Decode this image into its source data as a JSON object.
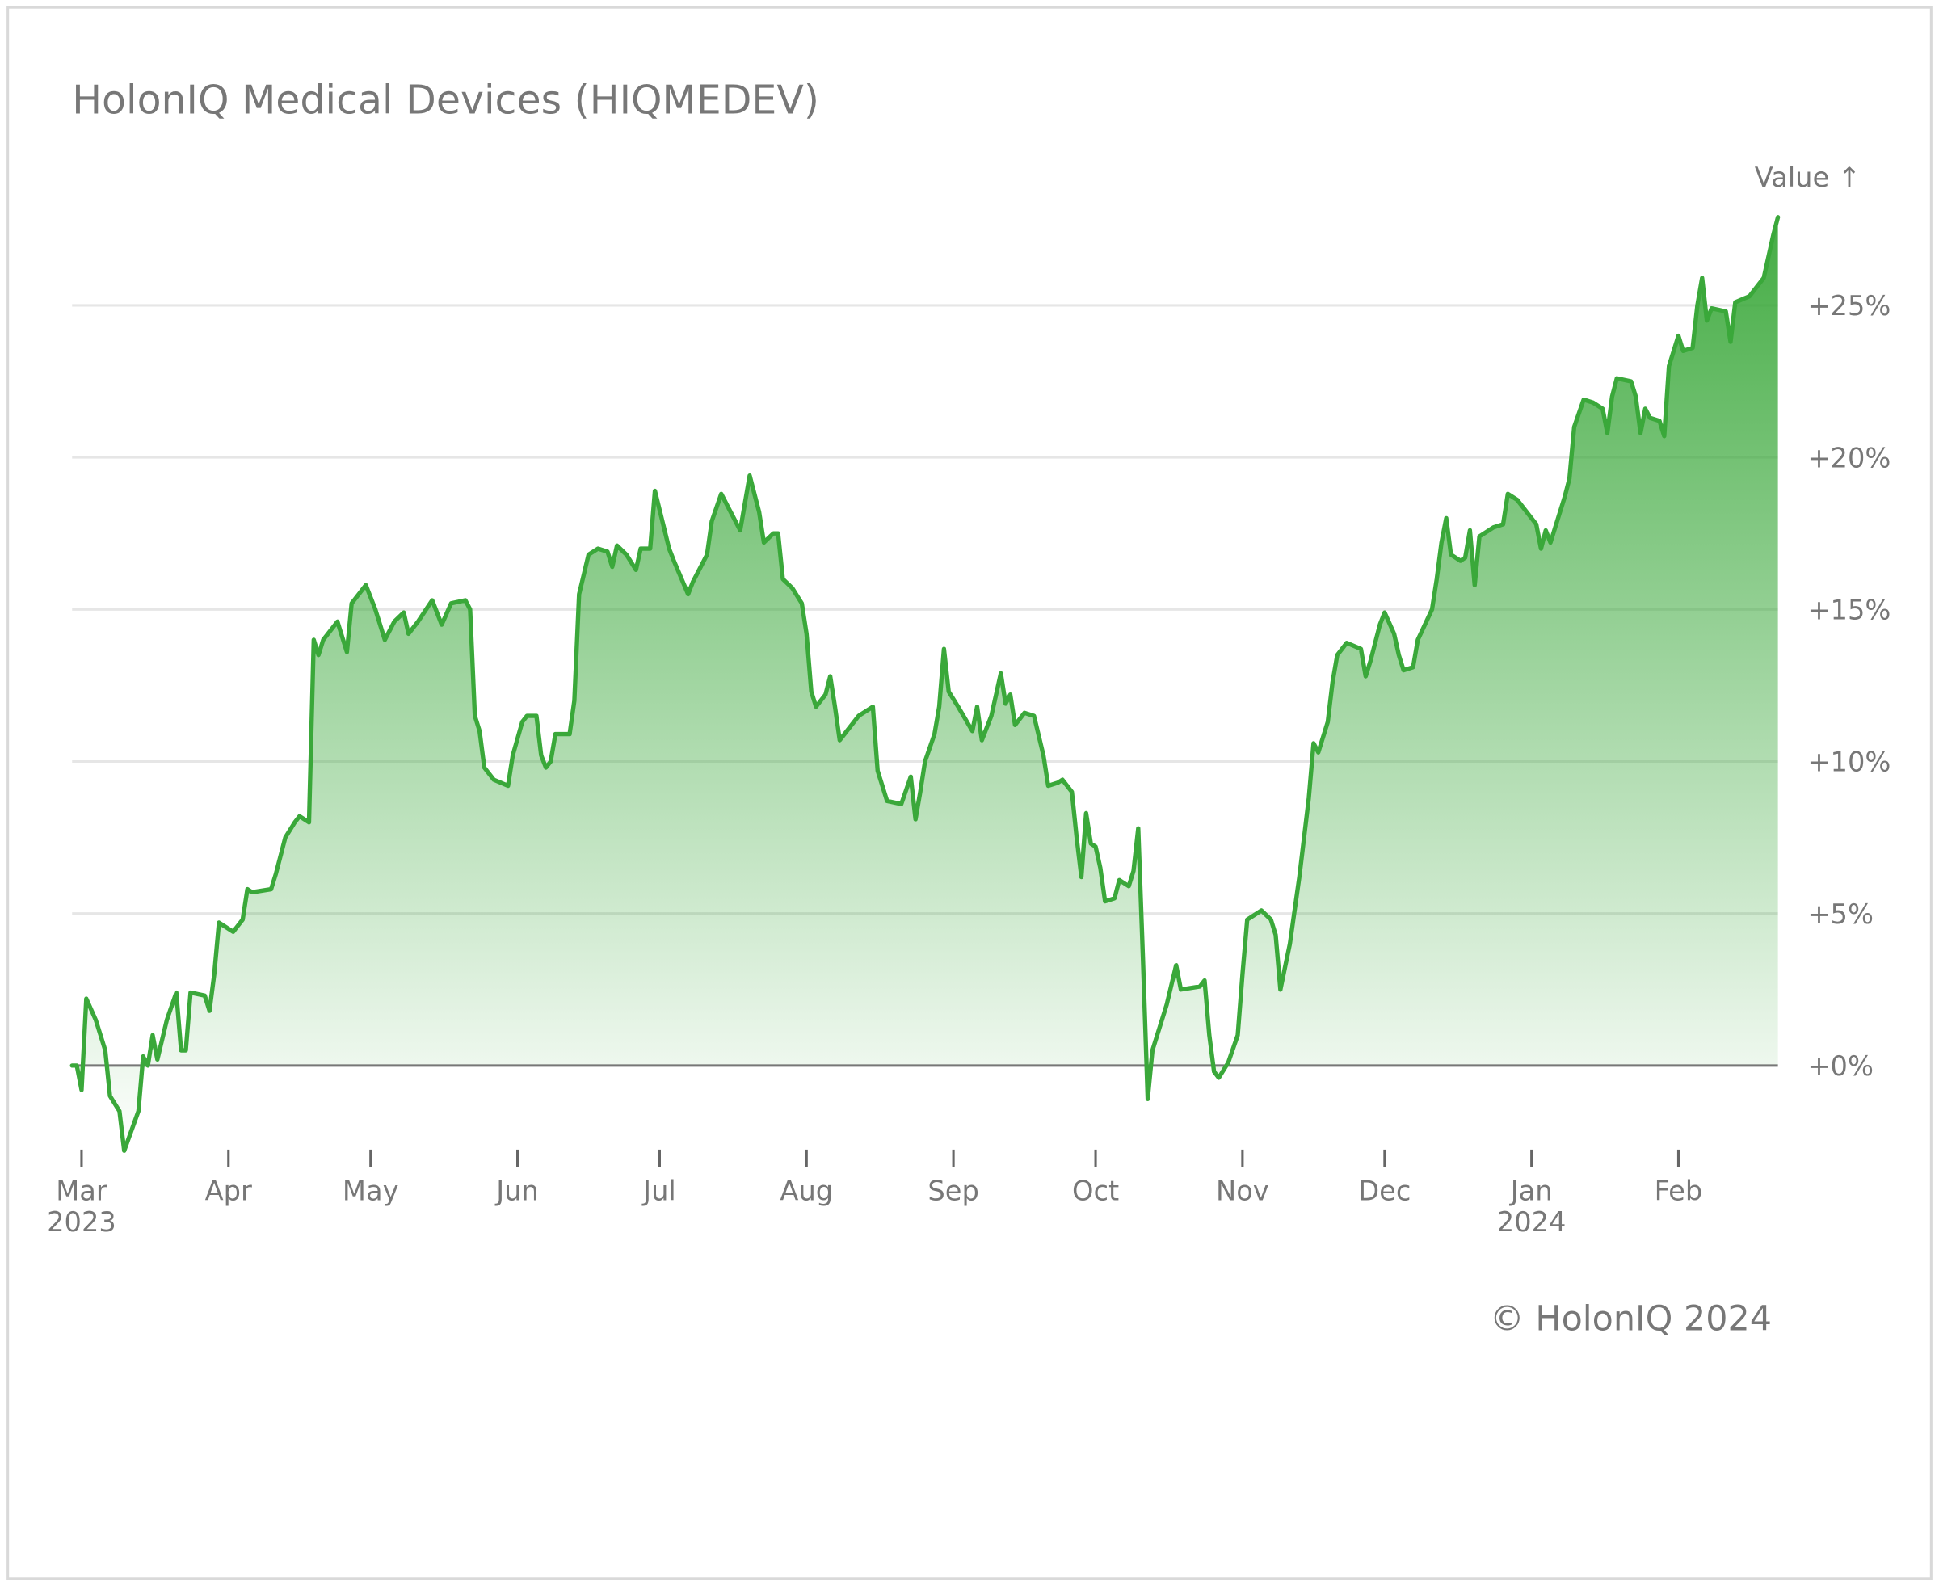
{
  "chart_data": {
    "type": "line",
    "title": "HolonIQ Medical Devices (HIQMEDEV)",
    "y_label": "Value ↑",
    "source": "© HolonIQ 2024",
    "color": "#3aa83a",
    "grid": true,
    "xlim": [
      "2023-02-27",
      "2024-02-22"
    ],
    "xticks": [
      {
        "value": "2023-03-01",
        "label": "Mar 2023"
      },
      {
        "value": "2023-04-01",
        "label": "Apr"
      },
      {
        "value": "2023-05-01",
        "label": "May"
      },
      {
        "value": "2023-06-01",
        "label": "Jun"
      },
      {
        "value": "2023-07-01",
        "label": "Jul"
      },
      {
        "value": "2023-08-01",
        "label": "Aug"
      },
      {
        "value": "2023-09-01",
        "label": "Sep"
      },
      {
        "value": "2023-10-01",
        "label": "Oct"
      },
      {
        "value": "2023-11-01",
        "label": "Nov"
      },
      {
        "value": "2023-12-01",
        "label": "Dec"
      },
      {
        "value": "2024-01-01",
        "label": "Jan 2024"
      },
      {
        "value": "2024-02-01",
        "label": "Feb"
      }
    ],
    "ylim": [
      -3,
      28
    ],
    "yticks": [
      {
        "value": 0,
        "label": "+0%"
      },
      {
        "value": 5,
        "label": "+5%"
      },
      {
        "value": 10,
        "label": "+10%"
      },
      {
        "value": 15,
        "label": "+15%"
      },
      {
        "value": 20,
        "label": "+20%"
      },
      {
        "value": 25,
        "label": "+25%"
      }
    ],
    "x": [
      "2023-02-27",
      "2023-02-28",
      "2023-03-01",
      "2023-03-02",
      "2023-03-04",
      "2023-03-06",
      "2023-03-07",
      "2023-03-09",
      "2023-03-10",
      "2023-03-13",
      "2023-03-14",
      "2023-03-15",
      "2023-03-16",
      "2023-03-17",
      "2023-03-19",
      "2023-03-21",
      "2023-03-22",
      "2023-03-23",
      "2023-03-24",
      "2023-03-27",
      "2023-03-28",
      "2023-03-29",
      "2023-03-30",
      "2023-04-02",
      "2023-04-04",
      "2023-04-05",
      "2023-04-06",
      "2023-04-10",
      "2023-04-11",
      "2023-04-13",
      "2023-04-15",
      "2023-04-16",
      "2023-04-18",
      "2023-04-19",
      "2023-04-20",
      "2023-04-21",
      "2023-04-24",
      "2023-04-26",
      "2023-04-27",
      "2023-04-30",
      "2023-05-02",
      "2023-05-04",
      "2023-05-06",
      "2023-05-08",
      "2023-05-09",
      "2023-05-11",
      "2023-05-14",
      "2023-05-16",
      "2023-05-18",
      "2023-05-21",
      "2023-05-22",
      "2023-05-23",
      "2023-05-24",
      "2023-05-25",
      "2023-05-27",
      "2023-05-30",
      "2023-05-31",
      "2023-06-02",
      "2023-06-03",
      "2023-06-05",
      "2023-06-06",
      "2023-06-07",
      "2023-06-08",
      "2023-06-09",
      "2023-06-12",
      "2023-06-13",
      "2023-06-14",
      "2023-06-16",
      "2023-06-18",
      "2023-06-20",
      "2023-06-21",
      "2023-06-22",
      "2023-06-24",
      "2023-06-26",
      "2023-06-27",
      "2023-06-29",
      "2023-06-30",
      "2023-07-03",
      "2023-07-04",
      "2023-07-07",
      "2023-07-08",
      "2023-07-11",
      "2023-07-12",
      "2023-07-14",
      "2023-07-16",
      "2023-07-18",
      "2023-07-20",
      "2023-07-22",
      "2023-07-23",
      "2023-07-25",
      "2023-07-26",
      "2023-07-27",
      "2023-07-29",
      "2023-07-31",
      "2023-08-01",
      "2023-08-02",
      "2023-08-03",
      "2023-08-05",
      "2023-08-06",
      "2023-08-07",
      "2023-08-08",
      "2023-08-10",
      "2023-08-12",
      "2023-08-15",
      "2023-08-16",
      "2023-08-18",
      "2023-08-21",
      "2023-08-23",
      "2023-08-24",
      "2023-08-25",
      "2023-08-26",
      "2023-08-28",
      "2023-08-29",
      "2023-08-30",
      "2023-08-31",
      "2023-09-02",
      "2023-09-05",
      "2023-09-06",
      "2023-09-07",
      "2023-09-09",
      "2023-09-11",
      "2023-09-12",
      "2023-09-13",
      "2023-09-14",
      "2023-09-16",
      "2023-09-18",
      "2023-09-20",
      "2023-09-21",
      "2023-09-23",
      "2023-09-24",
      "2023-09-26",
      "2023-09-27",
      "2023-09-28",
      "2023-09-29",
      "2023-09-30",
      "2023-10-01",
      "2023-10-02",
      "2023-10-03",
      "2023-10-05",
      "2023-10-06",
      "2023-10-08",
      "2023-10-09",
      "2023-10-10",
      "2023-10-11",
      "2023-10-12",
      "2023-10-13",
      "2023-10-16",
      "2023-10-18",
      "2023-10-19",
      "2023-10-23",
      "2023-10-24",
      "2023-10-25",
      "2023-10-26",
      "2023-10-27",
      "2023-10-29",
      "2023-10-31",
      "2023-11-01",
      "2023-11-02",
      "2023-11-05",
      "2023-11-07",
      "2023-11-08",
      "2023-11-09",
      "2023-11-11",
      "2023-11-13",
      "2023-11-15",
      "2023-11-16",
      "2023-11-17",
      "2023-11-19",
      "2023-11-20",
      "2023-11-21",
      "2023-11-23",
      "2023-11-26",
      "2023-11-27",
      "2023-11-28",
      "2023-11-30",
      "2023-12-01",
      "2023-12-03",
      "2023-12-04",
      "2023-12-05",
      "2023-12-07",
      "2023-12-08",
      "2023-12-11",
      "2023-12-12",
      "2023-12-13",
      "2023-12-14",
      "2023-12-15",
      "2023-12-17",
      "2023-12-18",
      "2023-12-19",
      "2023-12-20",
      "2023-12-21",
      "2023-12-24",
      "2023-12-26",
      "2023-12-27",
      "2023-12-29",
      "2024-01-02",
      "2024-01-03",
      "2024-01-04",
      "2024-01-05",
      "2024-01-08",
      "2024-01-09",
      "2024-01-10",
      "2024-01-12",
      "2024-01-14",
      "2024-01-16",
      "2024-01-17",
      "2024-01-18",
      "2024-01-19",
      "2024-01-22",
      "2024-01-23",
      "2024-01-24",
      "2024-01-25",
      "2024-01-26",
      "2024-01-28",
      "2024-01-29",
      "2024-01-30",
      "2024-02-01",
      "2024-02-02",
      "2024-02-04",
      "2024-02-05",
      "2024-02-06",
      "2024-02-07",
      "2024-02-08",
      "2024-02-11",
      "2024-02-12",
      "2024-02-13",
      "2024-02-16",
      "2024-02-19",
      "2024-02-21",
      "2024-02-22"
    ],
    "values": [
      0,
      0,
      -0.8,
      2.2,
      1.5,
      0.5,
      -1,
      -1.5,
      -2.8,
      -1.5,
      0.3,
      0,
      1,
      0.2,
      1.5,
      2.4,
      0.5,
      0.5,
      2.4,
      2.3,
      1.8,
      3,
      4.7,
      4.4,
      4.8,
      5.8,
      5.7,
      5.8,
      6.3,
      7.5,
      8.0,
      8.2,
      8.0,
      14.0,
      13.5,
      14.0,
      14.6,
      13.6,
      15.2,
      15.8,
      15.0,
      14.0,
      14.6,
      14.9,
      14.2,
      14.6,
      15.3,
      14.5,
      15.2,
      15.3,
      15.0,
      11.5,
      11.0,
      9.8,
      9.4,
      9.2,
      10.2,
      11.3,
      11.5,
      11.5,
      10.2,
      9.8,
      10.0,
      10.9,
      10.9,
      12.0,
      15.5,
      16.8,
      17.0,
      16.9,
      16.4,
      17.1,
      16.8,
      16.3,
      17.0,
      17.0,
      18.9,
      17.0,
      16.6,
      15.5,
      15.9,
      16.8,
      17.9,
      18.8,
      18.2,
      17.6,
      19.4,
      18.2,
      17.2,
      17.5,
      17.5,
      16.0,
      15.7,
      15.2,
      14.2,
      12.3,
      11.8,
      12.2,
      12.8,
      11.8,
      10.7,
      11.1,
      11.5,
      11.8,
      9.7,
      8.7,
      8.6,
      9.5,
      8.1,
      9.0,
      10.0,
      10.9,
      11.8,
      13.7,
      12.3,
      11.8,
      11.0,
      11.8,
      10.7,
      11.5,
      12.9,
      11.9,
      12.2,
      11.2,
      11.6,
      11.5,
      10.2,
      9.2,
      9.3,
      9.4,
      9.0,
      7.5,
      6.2,
      8.3,
      7.3,
      7.2,
      6.5,
      5.4,
      5.5,
      6.1,
      5.9,
      6.4,
      7.8,
      3.5,
      -1.1,
      0.5,
      2.0,
      3.3,
      2.5,
      2.6,
      2.8,
      1.0,
      -0.2,
      -0.4,
      0.1,
      1.0,
      3.0,
      4.8,
      5.1,
      4.8,
      4.3,
      2.5,
      4.0,
      6.2,
      8.8,
      10.6,
      10.3,
      11.3,
      12.6,
      13.5,
      13.9,
      13.7,
      12.8,
      13.3,
      14.5,
      14.9,
      14.2,
      13.5,
      13.0,
      13.1,
      14.0,
      15.0,
      16.0,
      17.2,
      18.0,
      16.8,
      16.6,
      16.7,
      17.6,
      15.8,
      17.4,
      17.7,
      17.8,
      18.8,
      18.6,
      17.8,
      17.0,
      17.6,
      17.2,
      18.7,
      19.3,
      21.0,
      21.9,
      21.8,
      21.6,
      20.8,
      22.0,
      22.6,
      22.5,
      22.0,
      20.8,
      21.6,
      21.3,
      21.2,
      20.7,
      23.0,
      24.0,
      23.5,
      23.6,
      25.0,
      25.9,
      24.5,
      24.9,
      24.8,
      23.8,
      25.1,
      25.3,
      25.9,
      27.3,
      27.9
    ]
  }
}
